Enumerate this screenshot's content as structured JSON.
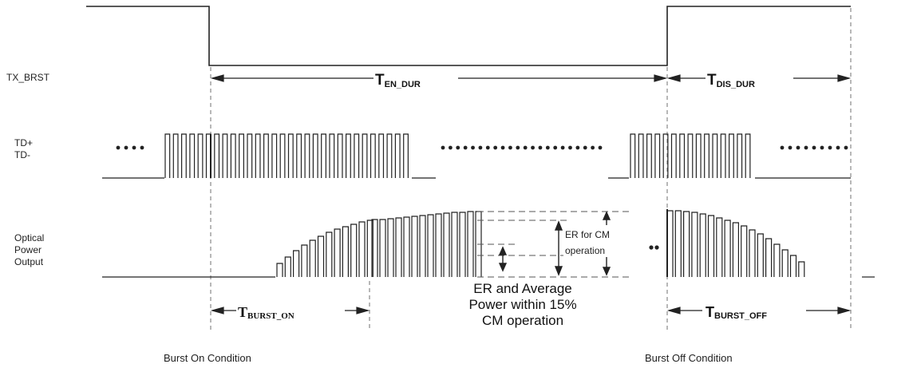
{
  "signals": {
    "tx_brst": "TX_BRST",
    "td_plus": "TD+",
    "td_minus": "TD-",
    "optical_1": "Optical",
    "optical_2": "Power",
    "optical_3": "Output"
  },
  "timing": {
    "en_dur_main": "T",
    "en_dur_sub": "EN_DUR",
    "dis_dur_main": "T",
    "dis_dur_sub": "DIS_DUR",
    "burst_on_main": "T",
    "burst_on_sub": "BURST_ON",
    "burst_off_main": "T",
    "burst_off_sub": "BURST_OFF"
  },
  "annotations": {
    "er_cm_1": "ER for CM",
    "er_cm_2": "operation",
    "center_1": "ER and Average",
    "center_2": "Power within 15%",
    "center_3": "CM operation"
  },
  "captions": {
    "burst_on": "Burst On Condition",
    "burst_off": "Burst Off Condition"
  },
  "colors": {
    "line": "#222222",
    "dashed": "#888888"
  }
}
